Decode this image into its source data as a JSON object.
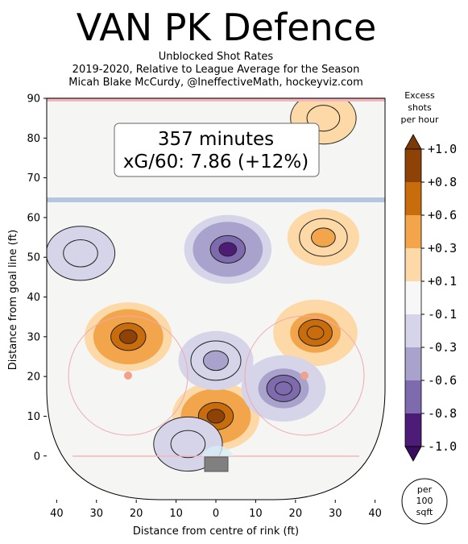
{
  "chart_data": {
    "type": "heatmap",
    "title": "VAN PK Defence",
    "subtitle_lines": [
      "Unblocked Shot Rates",
      "2019-2020, Relative to League Average for the Season",
      "Micah Blake McCurdy, @IneffectiveMath, hockeyviz.com"
    ],
    "xlabel": "Distance from centre of rink (ft)",
    "ylabel": "Distance from goal line (ft)",
    "x_ticks": [
      "40",
      "30",
      "20",
      "10",
      "0",
      "10",
      "20",
      "30",
      "40"
    ],
    "y_ticks": [
      "0",
      "10",
      "20",
      "30",
      "40",
      "50",
      "60",
      "70",
      "80",
      "90"
    ],
    "xlim": [
      -42.5,
      42.5
    ],
    "ylim": [
      -11,
      90
    ],
    "annotation": {
      "line1": "357 minutes",
      "line2": "xG/60: 7.86 (+12%)"
    },
    "colorbar": {
      "title_lines": [
        "Excess",
        "shots",
        "per hour"
      ],
      "labels": [
        "+1.0",
        "+0.8",
        "+0.6",
        "+0.3",
        "+0.1",
        "-0.1",
        "-0.3",
        "-0.6",
        "-0.8",
        "-1.0"
      ],
      "colors": [
        "#8f4206",
        "#c96d0c",
        "#f2a54a",
        "#fdd9a7",
        "#f7f7f7",
        "#d5d4e8",
        "#a8a2cc",
        "#7d6bad",
        "#4c1c77"
      ],
      "over_color": "#7a3a08",
      "under_color": "#3a0e5e"
    },
    "unit_badge": [
      "per",
      "100",
      "sqft"
    ],
    "regions": [
      {
        "x": 0,
        "y": 10,
        "level": 1.0
      },
      {
        "x": -22,
        "y": 30,
        "level": 1.0
      },
      {
        "x": 25,
        "y": 31,
        "level": 0.9
      },
      {
        "x": 3,
        "y": 52,
        "level": -1.0
      },
      {
        "x": 17,
        "y": 17,
        "level": -0.9
      },
      {
        "x": -34,
        "y": 51,
        "level": -0.4
      },
      {
        "x": 0,
        "y": 24,
        "level": -0.6
      },
      {
        "x": 27,
        "y": 55,
        "level": 0.5
      },
      {
        "x": -7,
        "y": 3,
        "level": -0.4
      },
      {
        "x": 27,
        "y": 85,
        "level": 0.3
      }
    ]
  }
}
